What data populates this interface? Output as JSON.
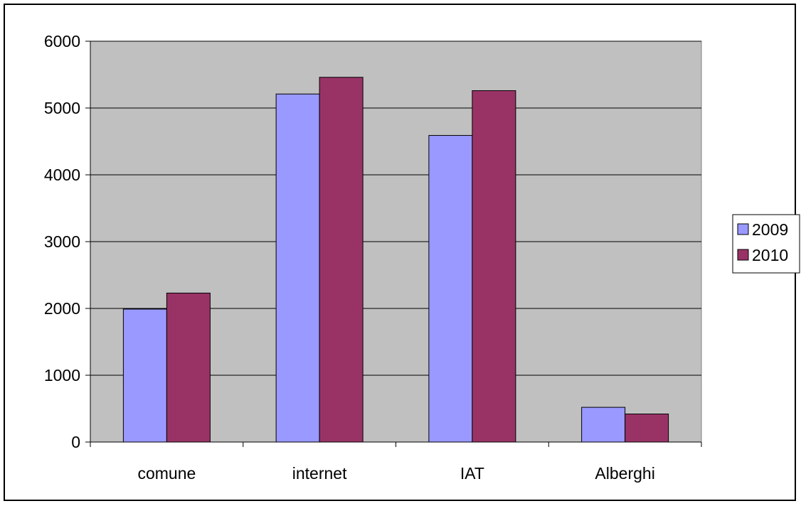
{
  "chart_data": {
    "type": "bar",
    "categories": [
      "comune",
      "internet",
      "IAT",
      "Alberghi"
    ],
    "series": [
      {
        "name": "2009",
        "values": [
          1990,
          5210,
          4590,
          520
        ],
        "color": "#9999ff"
      },
      {
        "name": "2010",
        "values": [
          2230,
          5460,
          5260,
          420
        ],
        "color": "#993366"
      }
    ],
    "ylim": [
      0,
      6000
    ],
    "yticks": [
      "0",
      "1000",
      "2000",
      "3000",
      "4000",
      "5000",
      "6000"
    ],
    "grid": true,
    "plot_background": "#c0c0c0",
    "legend_position": "right"
  }
}
